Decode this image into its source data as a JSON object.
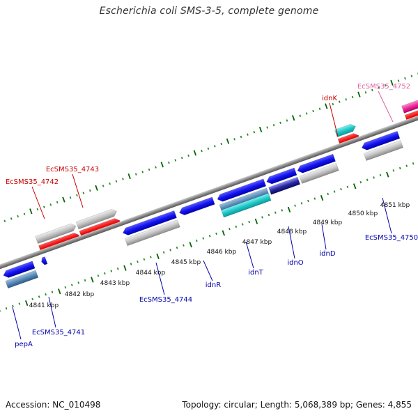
{
  "title": "Escherichia coli SMS-3-5, complete genome",
  "footer": {
    "accession": "Accession: NC_010498",
    "genome_info": "Topology: circular; Length: 5,068,389 bp; Genes: 4,855"
  },
  "colors": {
    "backbone": "#808080",
    "tick_major": "#006400",
    "tick_minor": "#2a8a2a",
    "label_blue": "#0000aa",
    "label_red": "#cc0000",
    "label_pink": "#e060a0"
  },
  "ticks": [
    {
      "label": "4841 kbp"
    },
    {
      "label": "4842 kbp"
    },
    {
      "label": "4843 kbp"
    },
    {
      "label": "4844 kbp"
    },
    {
      "label": "4845 kbp"
    },
    {
      "label": "4846 kbp"
    },
    {
      "label": "4847 kbp"
    },
    {
      "label": "4848 kbp"
    },
    {
      "label": "4849 kbp"
    },
    {
      "label": "4850 kbp"
    },
    {
      "label": "4851 kbp"
    }
  ],
  "gene_labels": [
    {
      "text": "EcSMS35_4743",
      "color": "red"
    },
    {
      "text": "EcSMS35_4742",
      "color": "red"
    },
    {
      "text": "idnK",
      "color": "red"
    },
    {
      "text": "EcSMS35_4752",
      "color": "pink"
    },
    {
      "text": "EcSMS35_4750",
      "color": "blue"
    },
    {
      "text": "idnD",
      "color": "blue"
    },
    {
      "text": "idnO",
      "color": "blue"
    },
    {
      "text": "idnT",
      "color": "blue"
    },
    {
      "text": "idnR",
      "color": "blue"
    },
    {
      "text": "EcSMS35_4744",
      "color": "blue"
    },
    {
      "text": "EcSMS35_4741",
      "color": "blue"
    },
    {
      "text": "pepA",
      "color": "blue"
    }
  ]
}
